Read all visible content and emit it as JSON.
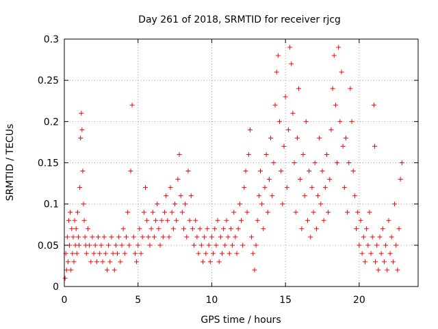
{
  "chart_data": {
    "type": "scatter",
    "title": "Day 261 of 2018, SRMTID for receiver rjcg",
    "xlabel": "GPS time / hours",
    "ylabel": "SRMTID / TECUs",
    "xlim": [
      0,
      24
    ],
    "ylim": [
      0,
      0.3
    ],
    "xticks": [
      0,
      5,
      10,
      15,
      20
    ],
    "xtick_labels": [
      "0",
      "5",
      "10",
      "15",
      "20"
    ],
    "yticks": [
      0,
      0.05,
      0.1,
      0.15,
      0.2,
      0.25,
      0.3
    ],
    "ytick_labels": [
      "0",
      "0.05",
      "0.1",
      "0.15",
      "0.2",
      "0.25",
      "0.3"
    ],
    "grid": true,
    "marker": "+",
    "color": "#ff0000",
    "series": [
      {
        "name": "SRMTID",
        "points": [
          [
            0.05,
            0.01
          ],
          [
            0.1,
            0.04
          ],
          [
            0.15,
            0.02
          ],
          [
            0.2,
            0.06
          ],
          [
            0.25,
            0.03
          ],
          [
            0.3,
            0.08
          ],
          [
            0.35,
            0.05
          ],
          [
            0.4,
            0.09
          ],
          [
            0.45,
            0.02
          ],
          [
            0.5,
            0.07
          ],
          [
            0.55,
            0.04
          ],
          [
            0.6,
            0.06
          ],
          [
            0.65,
            0.03
          ],
          [
            0.7,
            0.08
          ],
          [
            0.75,
            0.05
          ],
          [
            0.8,
            0.07
          ],
          [
            0.85,
            0.04
          ],
          [
            0.9,
            0.09
          ],
          [
            0.95,
            0.06
          ],
          [
            1.0,
            0.05
          ],
          [
            1.05,
            0.12
          ],
          [
            1.1,
            0.18
          ],
          [
            1.15,
            0.21
          ],
          [
            1.2,
            0.19
          ],
          [
            1.25,
            0.14
          ],
          [
            1.3,
            0.1
          ],
          [
            1.35,
            0.08
          ],
          [
            1.4,
            0.06
          ],
          [
            1.45,
            0.05
          ],
          [
            1.5,
            0.04
          ],
          [
            1.6,
            0.07
          ],
          [
            1.7,
            0.05
          ],
          [
            1.8,
            0.03
          ],
          [
            1.9,
            0.06
          ],
          [
            2.0,
            0.04
          ],
          [
            2.1,
            0.05
          ],
          [
            2.2,
            0.03
          ],
          [
            2.3,
            0.06
          ],
          [
            2.4,
            0.04
          ],
          [
            2.5,
            0.05
          ],
          [
            2.6,
            0.03
          ],
          [
            2.7,
            0.06
          ],
          [
            2.8,
            0.04
          ],
          [
            2.9,
            0.02
          ],
          [
            3.0,
            0.05
          ],
          [
            3.1,
            0.03
          ],
          [
            3.2,
            0.06
          ],
          [
            3.3,
            0.04
          ],
          [
            3.4,
            0.02
          ],
          [
            3.5,
            0.05
          ],
          [
            3.6,
            0.04
          ],
          [
            3.7,
            0.06
          ],
          [
            3.8,
            0.03
          ],
          [
            3.9,
            0.05
          ],
          [
            4.0,
            0.07
          ],
          [
            4.1,
            0.04
          ],
          [
            4.2,
            0.06
          ],
          [
            4.3,
            0.09
          ],
          [
            4.4,
            0.05
          ],
          [
            4.5,
            0.14
          ],
          [
            4.6,
            0.22
          ],
          [
            4.7,
            0.06
          ],
          [
            4.8,
            0.04
          ],
          [
            4.9,
            0.03
          ],
          [
            5.0,
            0.05
          ],
          [
            5.1,
            0.07
          ],
          [
            5.2,
            0.04
          ],
          [
            5.3,
            0.06
          ],
          [
            5.4,
            0.09
          ],
          [
            5.5,
            0.12
          ],
          [
            5.6,
            0.08
          ],
          [
            5.7,
            0.06
          ],
          [
            5.8,
            0.05
          ],
          [
            5.9,
            0.07
          ],
          [
            6.0,
            0.09
          ],
          [
            6.1,
            0.06
          ],
          [
            6.2,
            0.08
          ],
          [
            6.3,
            0.1
          ],
          [
            6.4,
            0.07
          ],
          [
            6.5,
            0.05
          ],
          [
            6.6,
            0.08
          ],
          [
            6.7,
            0.06
          ],
          [
            6.8,
            0.09
          ],
          [
            6.9,
            0.11
          ],
          [
            7.0,
            0.08
          ],
          [
            7.1,
            0.06
          ],
          [
            7.2,
            0.12
          ],
          [
            7.3,
            0.09
          ],
          [
            7.4,
            0.07
          ],
          [
            7.5,
            0.1
          ],
          [
            7.6,
            0.08
          ],
          [
            7.7,
            0.13
          ],
          [
            7.8,
            0.16
          ],
          [
            7.9,
            0.11
          ],
          [
            8.0,
            0.09
          ],
          [
            8.1,
            0.07
          ],
          [
            8.2,
            0.1
          ],
          [
            8.3,
            0.06
          ],
          [
            8.4,
            0.14
          ],
          [
            8.5,
            0.08
          ],
          [
            8.6,
            0.11
          ],
          [
            8.7,
            0.07
          ],
          [
            8.8,
            0.05
          ],
          [
            8.9,
            0.08
          ],
          [
            9.0,
            0.06
          ],
          [
            9.1,
            0.04
          ],
          [
            9.2,
            0.07
          ],
          [
            9.3,
            0.05
          ],
          [
            9.4,
            0.03
          ],
          [
            9.5,
            0.06
          ],
          [
            9.6,
            0.04
          ],
          [
            9.7,
            0.07
          ],
          [
            9.8,
            0.05
          ],
          [
            9.9,
            0.03
          ],
          [
            10.0,
            0.06
          ],
          [
            10.1,
            0.04
          ],
          [
            10.2,
            0.07
          ],
          [
            10.3,
            0.05
          ],
          [
            10.4,
            0.08
          ],
          [
            10.5,
            0.03
          ],
          [
            10.6,
            0.06
          ],
          [
            10.7,
            0.04
          ],
          [
            10.8,
            0.07
          ],
          [
            10.9,
            0.05
          ],
          [
            11.0,
            0.08
          ],
          [
            11.1,
            0.06
          ],
          [
            11.2,
            0.04
          ],
          [
            11.3,
            0.07
          ],
          [
            11.4,
            0.05
          ],
          [
            11.5,
            0.09
          ],
          [
            11.6,
            0.06
          ],
          [
            11.7,
            0.04
          ],
          [
            11.8,
            0.07
          ],
          [
            11.9,
            0.1
          ],
          [
            12.0,
            0.08
          ],
          [
            12.1,
            0.05
          ],
          [
            12.2,
            0.12
          ],
          [
            12.3,
            0.14
          ],
          [
            12.4,
            0.09
          ],
          [
            12.5,
            0.16
          ],
          [
            12.6,
            0.19
          ],
          [
            12.7,
            0.06
          ],
          [
            12.8,
            0.04
          ],
          [
            12.9,
            0.02
          ],
          [
            13.0,
            0.05
          ],
          [
            13.1,
            0.08
          ],
          [
            13.2,
            0.11
          ],
          [
            13.3,
            0.14
          ],
          [
            13.4,
            0.1
          ],
          [
            13.5,
            0.07
          ],
          [
            13.6,
            0.12
          ],
          [
            13.7,
            0.16
          ],
          [
            13.8,
            0.09
          ],
          [
            13.9,
            0.13
          ],
          [
            14.0,
            0.18
          ],
          [
            14.1,
            0.11
          ],
          [
            14.2,
            0.15
          ],
          [
            14.3,
            0.22
          ],
          [
            14.4,
            0.26
          ],
          [
            14.5,
            0.28
          ],
          [
            14.6,
            0.2
          ],
          [
            14.7,
            0.14
          ],
          [
            14.8,
            0.1
          ],
          [
            14.9,
            0.17
          ],
          [
            15.0,
            0.23
          ],
          [
            15.1,
            0.12
          ],
          [
            15.2,
            0.19
          ],
          [
            15.3,
            0.29
          ],
          [
            15.4,
            0.27
          ],
          [
            15.5,
            0.21
          ],
          [
            15.6,
            0.15
          ],
          [
            15.7,
            0.09
          ],
          [
            15.8,
            0.18
          ],
          [
            15.9,
            0.24
          ],
          [
            16.0,
            0.13
          ],
          [
            16.1,
            0.07
          ],
          [
            16.2,
            0.16
          ],
          [
            16.3,
            0.11
          ],
          [
            16.4,
            0.2
          ],
          [
            16.5,
            0.08
          ],
          [
            16.6,
            0.14
          ],
          [
            16.7,
            0.06
          ],
          [
            16.8,
            0.12
          ],
          [
            16.9,
            0.09
          ],
          [
            17.0,
            0.15
          ],
          [
            17.1,
            0.07
          ],
          [
            17.2,
            0.11
          ],
          [
            17.3,
            0.18
          ],
          [
            17.4,
            0.1
          ],
          [
            17.5,
            0.14
          ],
          [
            17.6,
            0.08
          ],
          [
            17.7,
            0.12
          ],
          [
            17.8,
            0.16
          ],
          [
            17.9,
            0.09
          ],
          [
            18.0,
            0.13
          ],
          [
            18.1,
            0.19
          ],
          [
            18.2,
            0.24
          ],
          [
            18.3,
            0.28
          ],
          [
            18.4,
            0.22
          ],
          [
            18.5,
            0.15
          ],
          [
            18.6,
            0.29
          ],
          [
            18.7,
            0.2
          ],
          [
            18.8,
            0.26
          ],
          [
            18.9,
            0.17
          ],
          [
            19.0,
            0.12
          ],
          [
            19.1,
            0.18
          ],
          [
            19.2,
            0.09
          ],
          [
            19.3,
            0.15
          ],
          [
            19.4,
            0.24
          ],
          [
            19.5,
            0.2
          ],
          [
            19.6,
            0.14
          ],
          [
            19.7,
            0.11
          ],
          [
            19.8,
            0.07
          ],
          [
            19.9,
            0.09
          ],
          [
            20.0,
            0.05
          ],
          [
            20.1,
            0.08
          ],
          [
            20.2,
            0.04
          ],
          [
            20.3,
            0.06
          ],
          [
            20.4,
            0.03
          ],
          [
            20.5,
            0.07
          ],
          [
            20.6,
            0.05
          ],
          [
            20.7,
            0.09
          ],
          [
            20.8,
            0.04
          ],
          [
            20.9,
            0.06
          ],
          [
            21.0,
            0.22
          ],
          [
            21.05,
            0.17
          ],
          [
            21.1,
            0.03
          ],
          [
            21.2,
            0.05
          ],
          [
            21.3,
            0.02
          ],
          [
            21.4,
            0.06
          ],
          [
            21.5,
            0.04
          ],
          [
            21.6,
            0.07
          ],
          [
            21.7,
            0.03
          ],
          [
            21.8,
            0.05
          ],
          [
            21.9,
            0.02
          ],
          [
            22.0,
            0.08
          ],
          [
            22.1,
            0.04
          ],
          [
            22.2,
            0.06
          ],
          [
            22.3,
            0.03
          ],
          [
            22.4,
            0.1
          ],
          [
            22.5,
            0.05
          ],
          [
            22.6,
            0.02
          ],
          [
            22.7,
            0.07
          ],
          [
            22.8,
            0.13
          ],
          [
            22.9,
            0.15
          ]
        ]
      }
    ]
  }
}
